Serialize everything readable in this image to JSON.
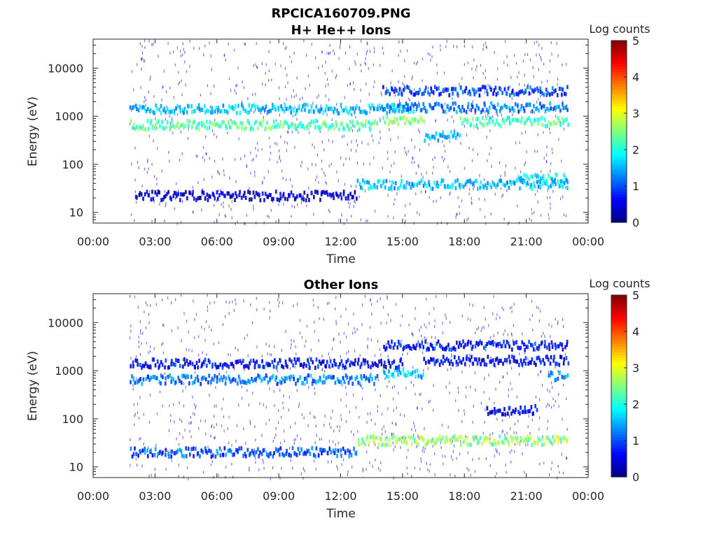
{
  "figure": {
    "title": "RPCICA160709.PNG"
  },
  "chart_data": [
    {
      "type": "heatmap",
      "title": "H+ He++ Ions",
      "xlabel": "Time",
      "ylabel": "Energy (eV)",
      "xlim": [
        "00:00",
        "24:00"
      ],
      "xticks": [
        "00:00",
        "03:00",
        "06:00",
        "09:00",
        "12:00",
        "15:00",
        "18:00",
        "21:00",
        "00:00"
      ],
      "ylim": [
        6,
        40000
      ],
      "yscale": "log",
      "yticks": [
        10,
        100,
        1000,
        10000
      ],
      "ytick_labels": [
        "10",
        "100",
        "1000",
        "10000"
      ],
      "colorbar": {
        "label": "Log counts",
        "min": 0,
        "max": 5,
        "ticks": [
          "0",
          "1",
          "2",
          "3",
          "4",
          "5"
        ],
        "colormap": "jet"
      },
      "data_coverage": [
        "01:45",
        "23:00"
      ],
      "features": [
        {
          "start": "01:45",
          "end": "13:45",
          "energy_eV": 650,
          "level": 2.3
        },
        {
          "start": "01:45",
          "end": "15:30",
          "energy_eV": 1400,
          "level": 1.6
        },
        {
          "start": "14:00",
          "end": "16:00",
          "energy_eV": 800,
          "level": 2.6
        },
        {
          "start": "16:00",
          "end": "17:45",
          "energy_eV": 380,
          "level": 1.5
        },
        {
          "start": "17:45",
          "end": "23:00",
          "energy_eV": 750,
          "level": 2.2
        },
        {
          "start": "14:00",
          "end": "23:00",
          "energy_eV": 1500,
          "level": 1.2
        },
        {
          "start": "14:00",
          "end": "23:00",
          "energy_eV": 3300,
          "level": 0.9
        },
        {
          "start": "12:45",
          "end": "23:00",
          "energy_eV": 38,
          "level": 1.6
        },
        {
          "start": "02:00",
          "end": "12:45",
          "energy_eV": 22,
          "level": 0.4
        },
        {
          "start": "20:30",
          "end": "23:00",
          "energy_eV": 50,
          "level": 1.8
        }
      ]
    },
    {
      "type": "heatmap",
      "title": "Other Ions",
      "xlabel": "Time",
      "ylabel": "Energy (eV)",
      "xlim": [
        "00:00",
        "24:00"
      ],
      "xticks": [
        "00:00",
        "03:00",
        "06:00",
        "09:00",
        "12:00",
        "15:00",
        "18:00",
        "21:00",
        "00:00"
      ],
      "ylim": [
        6,
        40000
      ],
      "yscale": "log",
      "yticks": [
        10,
        100,
        1000,
        10000
      ],
      "ytick_labels": [
        "10",
        "100",
        "1000",
        "10000"
      ],
      "colorbar": {
        "label": "Log counts",
        "min": 0,
        "max": 5,
        "ticks": [
          "0",
          "1",
          "2",
          "3",
          "4",
          "5"
        ],
        "colormap": "jet"
      },
      "data_coverage": [
        "01:45",
        "23:00"
      ],
      "features": [
        {
          "start": "01:45",
          "end": "12:45",
          "energy_eV": 20,
          "level": 1.0
        },
        {
          "start": "12:45",
          "end": "23:00",
          "energy_eV": 35,
          "level": 2.6
        },
        {
          "start": "01:45",
          "end": "13:45",
          "energy_eV": 650,
          "level": 1.2
        },
        {
          "start": "14:00",
          "end": "16:00",
          "energy_eV": 850,
          "level": 1.6
        },
        {
          "start": "01:45",
          "end": "15:00",
          "energy_eV": 1400,
          "level": 0.6
        },
        {
          "start": "14:00",
          "end": "23:00",
          "energy_eV": 3300,
          "level": 0.7
        },
        {
          "start": "16:00",
          "end": "23:00",
          "energy_eV": 1600,
          "level": 0.6
        },
        {
          "start": "19:00",
          "end": "21:30",
          "energy_eV": 150,
          "level": 0.5
        },
        {
          "start": "22:00",
          "end": "23:00",
          "energy_eV": 750,
          "level": 1.3
        }
      ]
    }
  ]
}
